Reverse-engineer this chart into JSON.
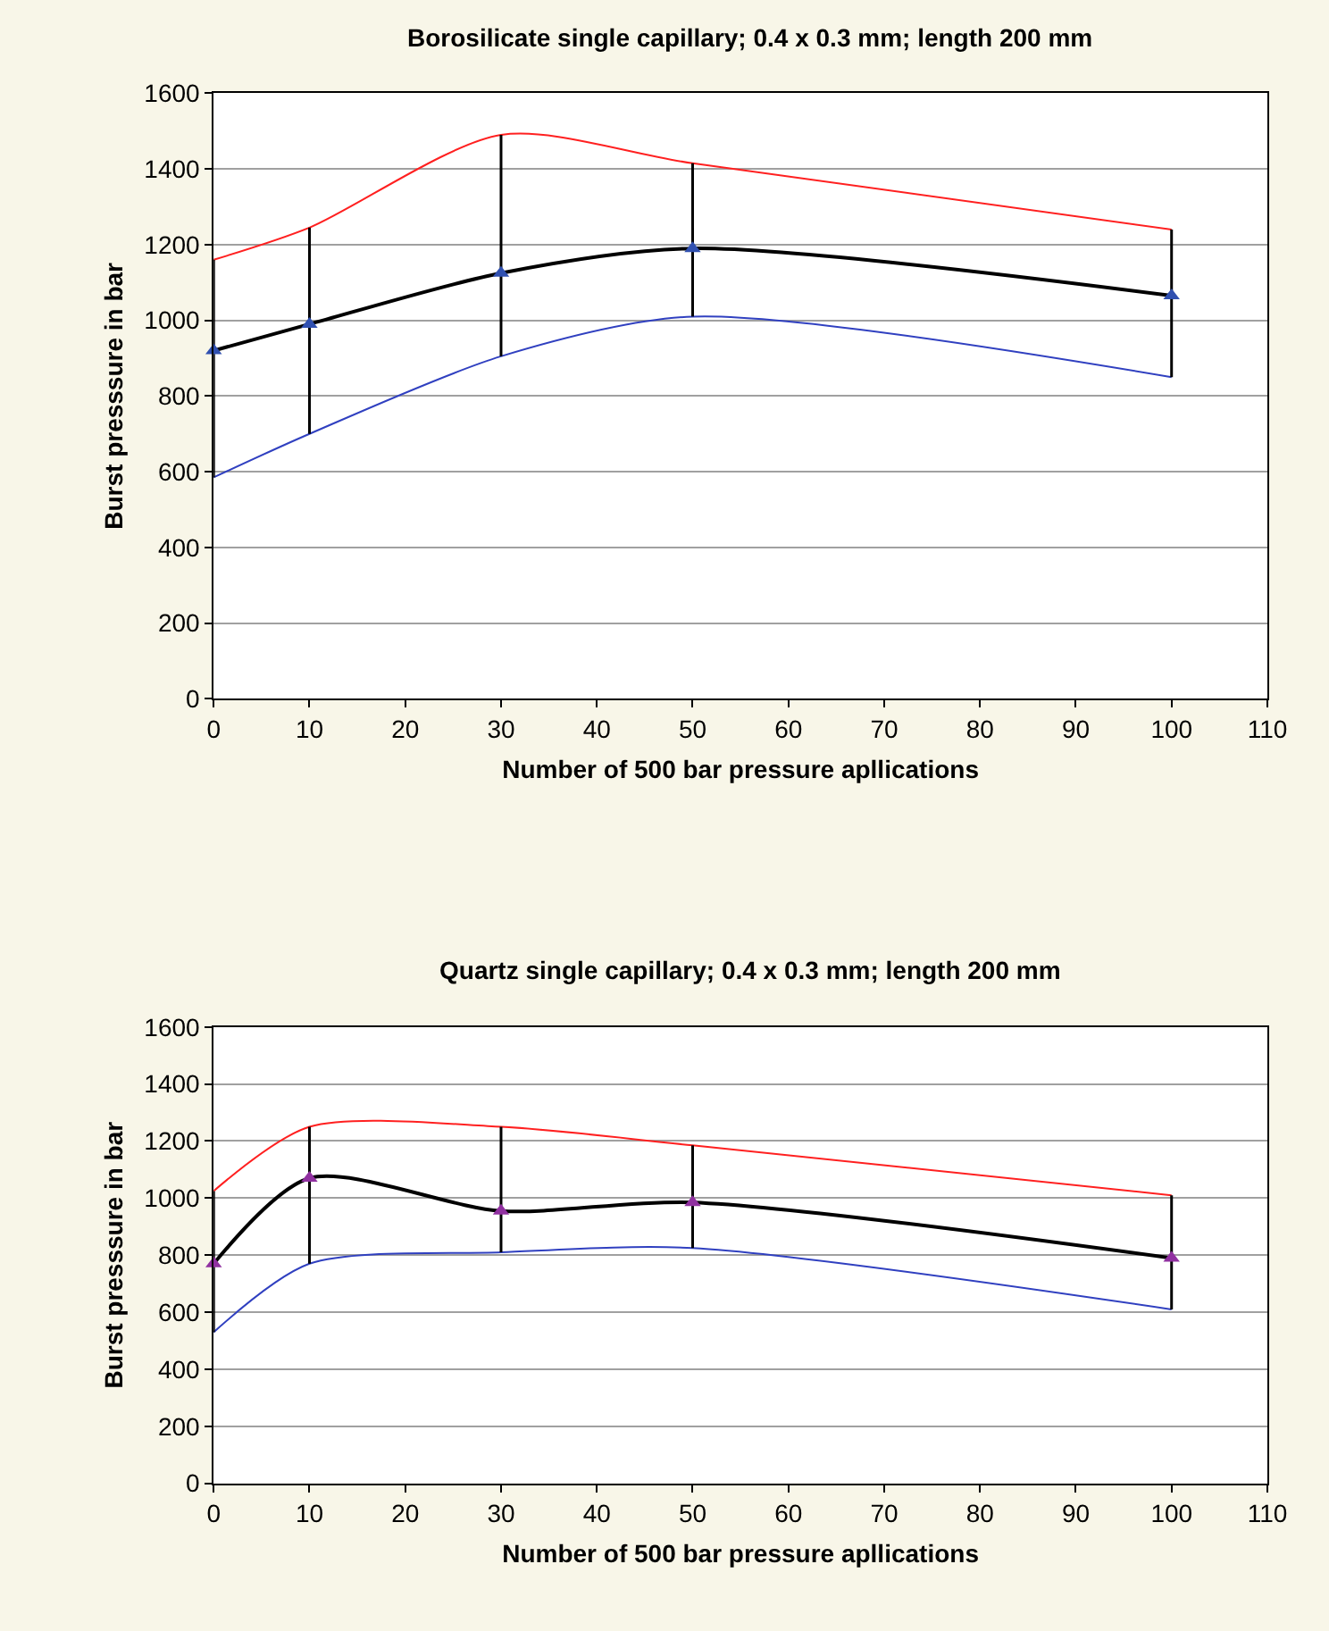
{
  "chart_data": [
    {
      "type": "line",
      "title": "Borosilicate single capillary; 0.4 x 0.3 mm; length 200 mm",
      "xlabel": "Number of 500 bar pressure apllications",
      "ylabel": "Burst presssure in bar",
      "x": [
        0,
        10,
        30,
        50,
        100
      ],
      "xlim": [
        0,
        110
      ],
      "xticks": [
        0,
        10,
        20,
        30,
        40,
        50,
        60,
        70,
        80,
        90,
        100,
        110
      ],
      "ylim": [
        0,
        1600
      ],
      "yticks": [
        0,
        200,
        400,
        600,
        800,
        1000,
        1200,
        1400,
        1600
      ],
      "grid": "y",
      "series": [
        {
          "color": "#ff2020",
          "values": [
            1160,
            1245,
            1490,
            1415,
            1240
          ],
          "marker": "none"
        },
        {
          "color": "#3040c0",
          "values": [
            585,
            700,
            905,
            1010,
            850
          ],
          "marker": "none"
        },
        {
          "color": "#000000",
          "colors": [
            "#3050b0",
            "#3050b0",
            "#3050b0",
            "#3050b0",
            "#3050b0"
          ],
          "values": [
            920,
            990,
            1125,
            1190,
            1065
          ],
          "marker": "triangle",
          "errors": [
            [
              585,
              1160
            ],
            [
              700,
              1245
            ],
            [
              905,
              1490
            ],
            [
              1010,
              1415
            ],
            [
              850,
              1240
            ]
          ]
        }
      ]
    },
    {
      "type": "line",
      "title": "Quartz single capillary; 0.4 x 0.3 mm; length 200 mm",
      "xlabel": "Number of 500 bar pressure apllications",
      "ylabel": "Burst presssure in bar",
      "x": [
        0,
        10,
        30,
        50,
        100
      ],
      "xlim": [
        0,
        110
      ],
      "xticks": [
        0,
        10,
        20,
        30,
        40,
        50,
        60,
        70,
        80,
        90,
        100,
        110
      ],
      "ylim": [
        0,
        1600
      ],
      "yticks": [
        0,
        200,
        400,
        600,
        800,
        1000,
        1200,
        1400,
        1600
      ],
      "grid": "y",
      "series": [
        {
          "color": "#ff2020",
          "values": [
            1025,
            1250,
            1250,
            1185,
            1010
          ],
          "marker": "none"
        },
        {
          "color": "#3040c0",
          "values": [
            530,
            770,
            810,
            825,
            610
          ],
          "marker": "none"
        },
        {
          "color": "#000000",
          "colors": [
            "#9030a0",
            "#9030a0",
            "#9030a0",
            "#9030a0",
            "#9030a0"
          ],
          "values": [
            770,
            1070,
            955,
            985,
            790
          ],
          "marker": "triangle",
          "errors": [
            [
              530,
              1025
            ],
            [
              770,
              1250
            ],
            [
              810,
              1250
            ],
            [
              825,
              1185
            ],
            [
              610,
              1010
            ]
          ]
        }
      ]
    }
  ]
}
